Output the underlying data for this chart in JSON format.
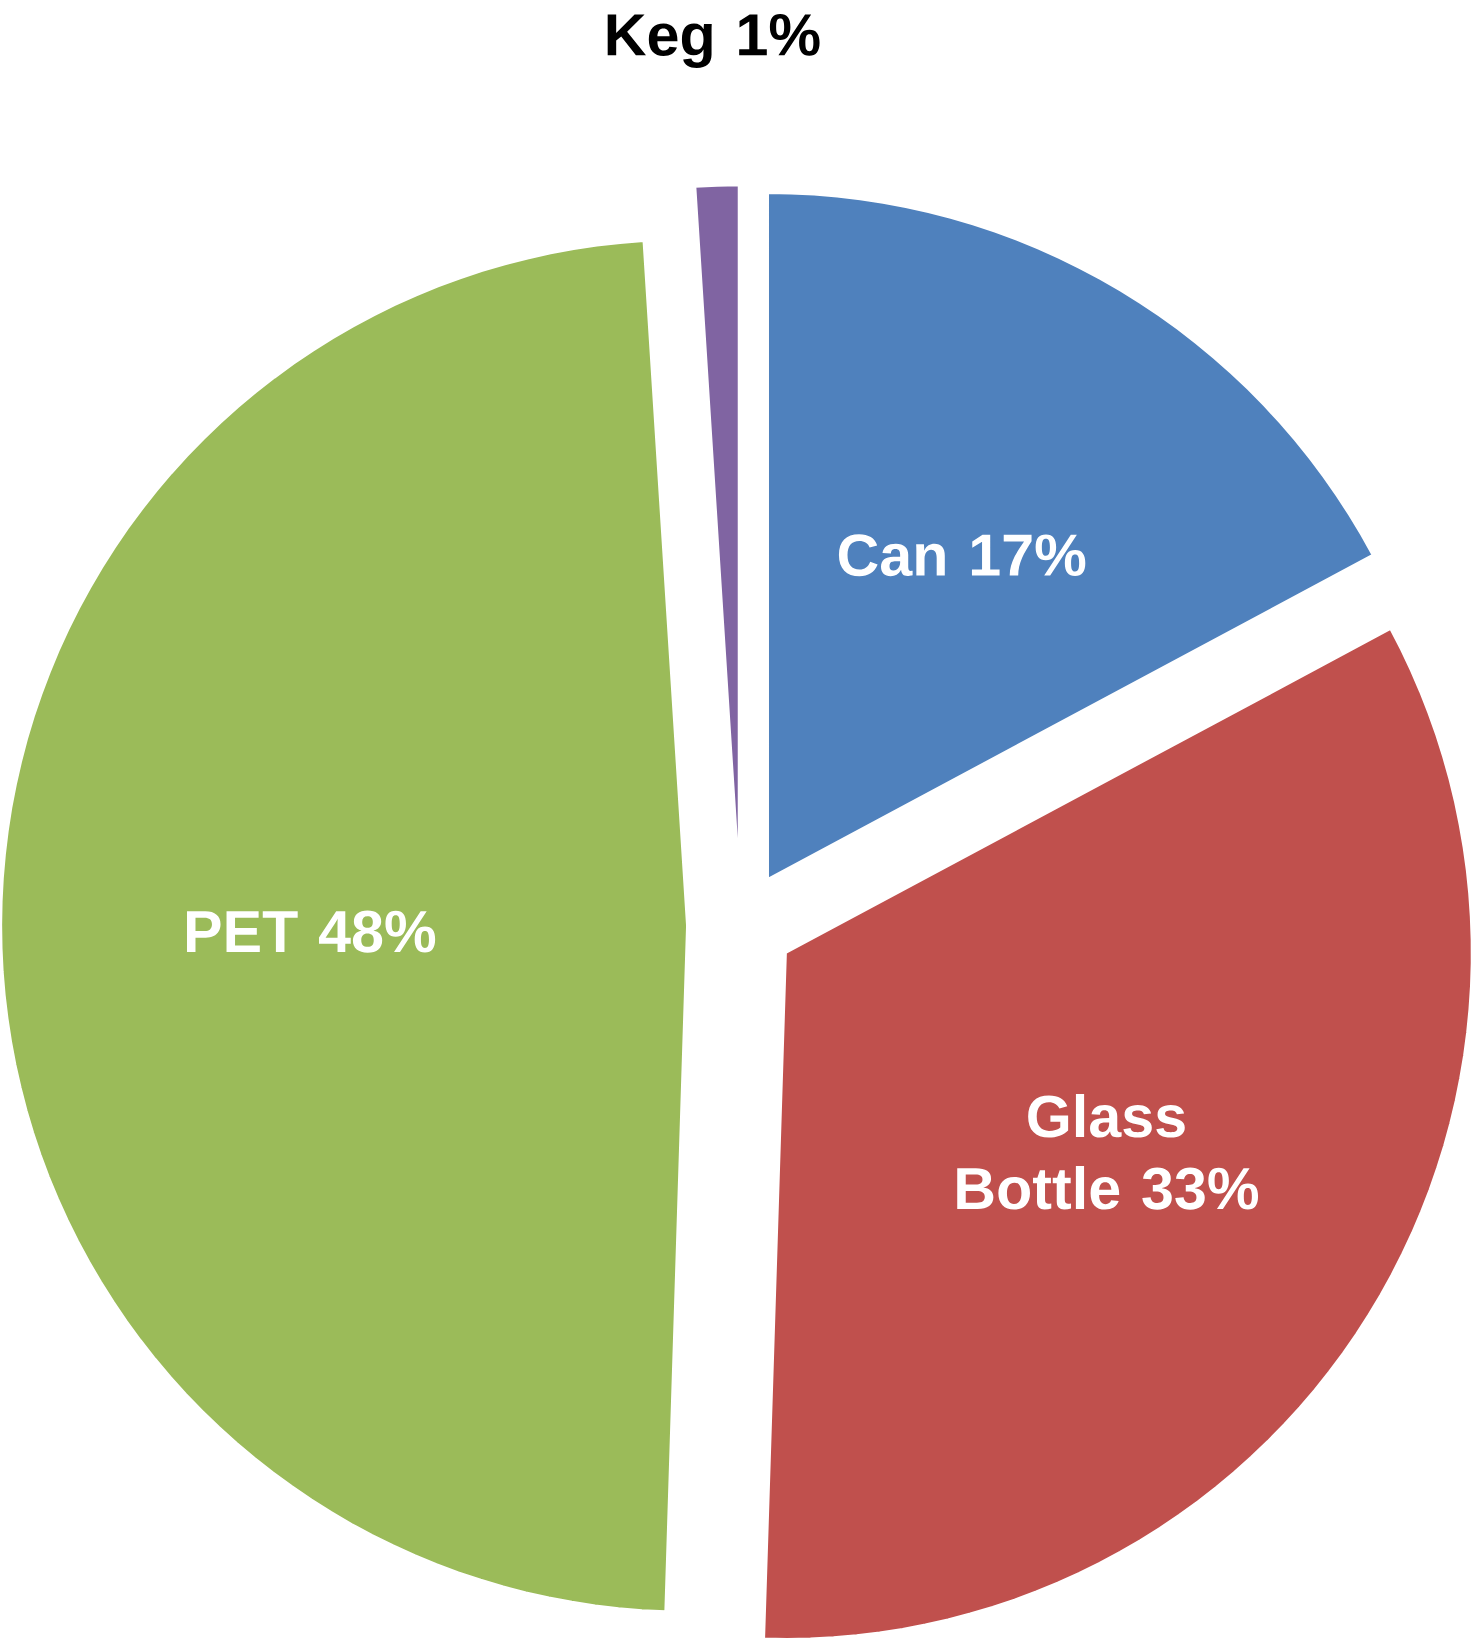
{
  "chart_data": {
    "type": "pie",
    "categories": [
      "Can",
      "Glass Bottle",
      "PET",
      "Keg"
    ],
    "values": [
      17,
      33,
      48,
      1
    ],
    "value_labels": [
      "17%",
      "33%",
      "48%",
      "1%"
    ],
    "colors": [
      "#4f81bd",
      "#c0504d",
      "#9bbb59",
      "#8064a2"
    ]
  }
}
